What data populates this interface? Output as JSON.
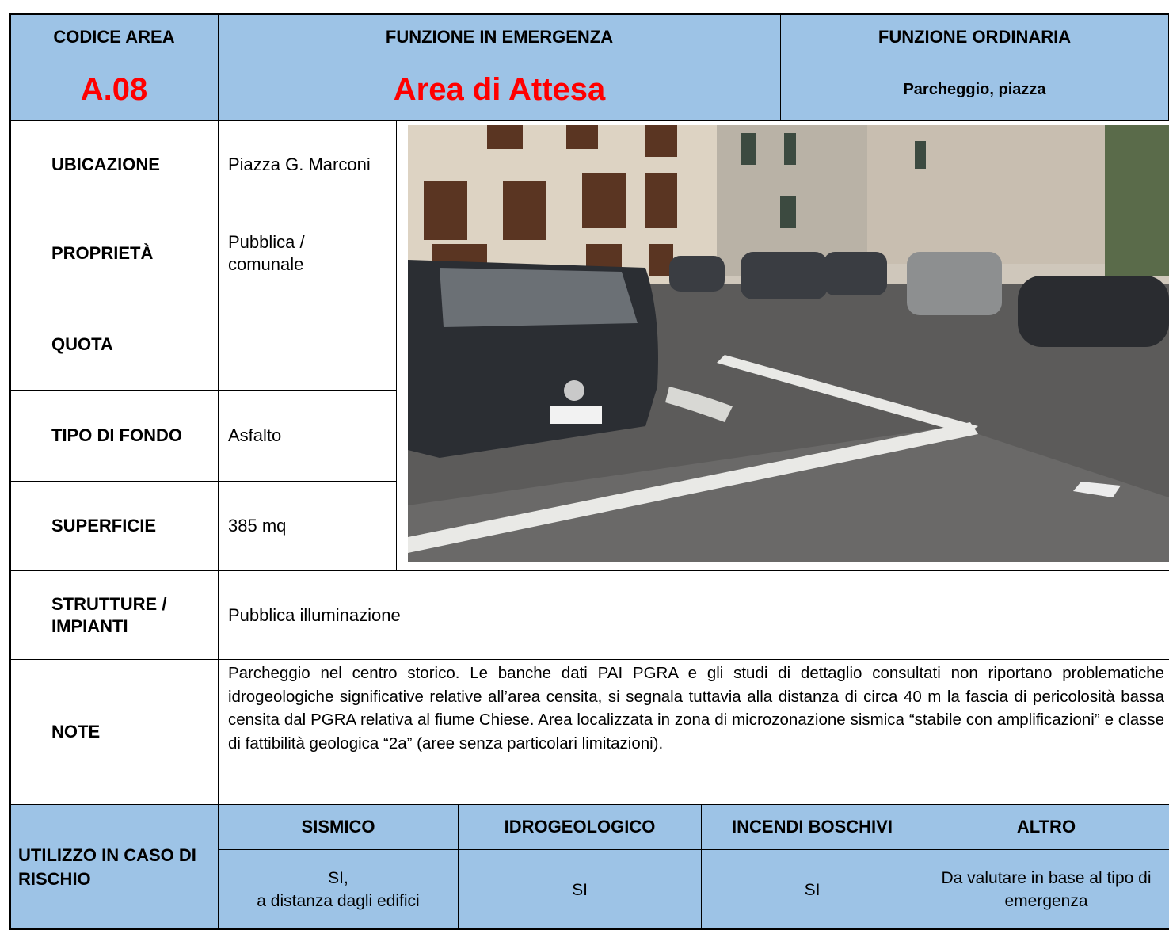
{
  "header": {
    "codice_area": "CODICE AREA",
    "funzione_emergenza": "FUNZIONE IN EMERGENZA",
    "funzione_ordinaria": "FUNZIONE ORDINARIA"
  },
  "area": {
    "codice": "A.08",
    "funzione_emergenza": "Area di Attesa",
    "funzione_ordinaria": "Parcheggio, piazza"
  },
  "fields": [
    {
      "label": "UBICAZIONE",
      "value": "Piazza G. Marconi"
    },
    {
      "label": "PROPRIETÀ",
      "value": "Pubblica / comunale"
    },
    {
      "label": "QUOTA"
    },
    {
      "label": "TIPO DI FONDO",
      "value": "Asfalto"
    },
    {
      "label": "SUPERFICIE",
      "value": "385 mq"
    }
  ],
  "strutture": {
    "label": "STRUTTURE / IMPIANTI",
    "value": "Pubblica illuminazione"
  },
  "note": {
    "label": "NOTE",
    "value": "Parcheggio nel centro storico.  Le banche dati PAI PGRA e gli studi di dettaglio consultati non riportano problematiche idrogeologiche significative relative all’area censita, si segnala tuttavia alla distanza di circa 40 m la fascia di pericolosità bassa censita dal PGRA relativa al fiume Chiese. Area localizzata in zona di microzonazione sismica “stabile con amplificazioni” e classe di fattibilità geologica “2a” (aree senza particolari limitazioni)."
  },
  "utilizzo": {
    "label": "UTILIZZO IN CASO DI RISCHIO",
    "columns": [
      "SISMICO",
      "IDROGEOLOGICO",
      "INCENDI BOSCHIVI",
      "ALTRO"
    ],
    "values": [
      "SI,\na distanza dagli edifici",
      "SI",
      "SI",
      "Da valutare in base al tipo di emergenza"
    ]
  }
}
